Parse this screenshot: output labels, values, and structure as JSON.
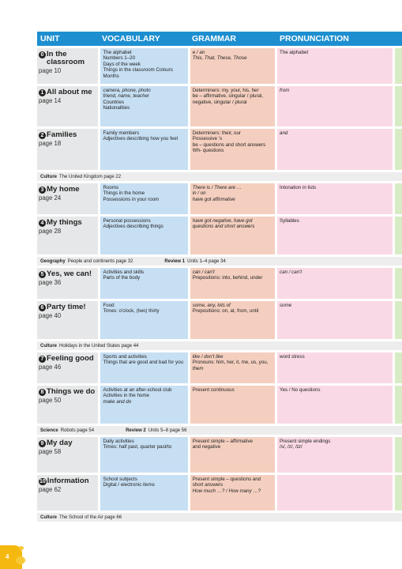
{
  "header": {
    "unit": "UNIT",
    "vocabulary": "VOCABULARY",
    "grammar": "GRAMMAR",
    "pronunciation": "PRONUNCIATION"
  },
  "units": [
    {
      "num": "0",
      "title": "In the classroom",
      "page": "page 10",
      "vocab": [
        "The alphabet",
        "Numbers 1–20",
        "Days of the week",
        "Things in the classroom Colours",
        "Months"
      ],
      "grammar": [
        "e / an",
        "This, That, These, Those"
      ],
      "pron": [
        "The alphabet"
      ]
    },
    {
      "num": "1",
      "title": "All about me",
      "page": "page 14",
      "vocab": [
        "camera, phone, photo",
        "friend, name, teacher",
        "Countries",
        "Nationalities"
      ],
      "grammar": [
        "Determiners: my, your, his, her",
        "be – affirmative, singular / plural,",
        "negative, singular / plural"
      ],
      "pron": [
        "from"
      ]
    },
    {
      "num": "2",
      "title": "Families",
      "page": "page 18",
      "vocab": [
        "Family members",
        "Adjectives describing how you feel"
      ],
      "grammar": [
        "Determiners: their, our",
        "Possessive 's",
        "be – questions and short answers",
        "Wh- questions"
      ],
      "pron": [
        "and"
      ]
    },
    {
      "num": "3",
      "title": "My home",
      "page": "page 24",
      "vocab": [
        "Rooms",
        "Things in the home",
        "Possessions in your room"
      ],
      "grammar": [
        "There is / There are …",
        "in / on",
        "have got affirmative"
      ],
      "pron": [
        "Intonation in lists"
      ]
    },
    {
      "num": "4",
      "title": "My things",
      "page": "page 28",
      "vocab": [
        "Personal possessions",
        "Adjectives describing things"
      ],
      "grammar": [
        "have got negative, have got",
        "questions and short answers"
      ],
      "pron": [
        "Syllables"
      ]
    },
    {
      "num": "5",
      "title": "Yes, we can!",
      "page": "page 36",
      "vocab": [
        "Activities and skills",
        "Parts of the body"
      ],
      "grammar": [
        "can / can't",
        "Prepositions: into, behind, under"
      ],
      "pron": [
        "can / can't"
      ]
    },
    {
      "num": "6",
      "title": "Party time!",
      "page": "page 40",
      "vocab": [
        "Food",
        "Times: o'clock, (two) thirty"
      ],
      "grammar": [
        "some, any, lots of",
        "Prepositions: on, at, from, until"
      ],
      "pron": [
        "some"
      ]
    },
    {
      "num": "7",
      "title": "Feeling good",
      "page": "page 46",
      "vocab": [
        "Sports and activities",
        "Things that are good and bad for you"
      ],
      "grammar": [
        "like / don't like",
        "Pronouns: him, her, it, me, us, you,",
        "them"
      ],
      "pron": [
        "word stress"
      ]
    },
    {
      "num": "8",
      "title": "Things we do",
      "page": "page 50",
      "vocab": [
        "Activities at an after-school club",
        "Activities in the home",
        "make and do"
      ],
      "grammar": [
        "Present continuous"
      ],
      "pron": [
        "Yes / No questions"
      ]
    },
    {
      "num": "9",
      "title": "My day",
      "page": "page 58",
      "vocab": [
        "Daily activities",
        "Times: half past, quarter past/to"
      ],
      "grammar": [
        "Present simple – affirmative",
        "and negative"
      ],
      "pron": [
        "Present simple endings",
        "/s/, /z/, /ɪz/"
      ]
    },
    {
      "num": "10",
      "title": "Information",
      "page": "page 62",
      "vocab": [
        "School subjects",
        "Digital / electronic items"
      ],
      "grammar": [
        "Present simple – questions and",
        "short answers",
        "How much …? / How many …?"
      ],
      "pron": []
    }
  ],
  "bands": {
    "b1": {
      "label": "Culture",
      "text": "The United Kingdom page 22"
    },
    "b2": {
      "label": "Geography",
      "text": "People and continents page 32",
      "label2": "Review 1",
      "text2": "Units 1–4 page 34"
    },
    "b3": {
      "label": "Culture",
      "text": "Holidays in the United States page 44"
    },
    "b4": {
      "label": "Science",
      "text": "Robots page 54",
      "label2": "Review 2",
      "text2": "Units 5–8 page 56"
    },
    "b5": {
      "label": "Culture",
      "text": "The School of the Air page 66"
    }
  },
  "page_number": "4",
  "colors": {
    "header": "#1d8fd0",
    "unit": "#e6e7e8",
    "vocabulary": "#c7dff3",
    "grammar": "#f4cfbf",
    "pronunciation": "#f9d9e5",
    "corner": "#f5b80f"
  }
}
